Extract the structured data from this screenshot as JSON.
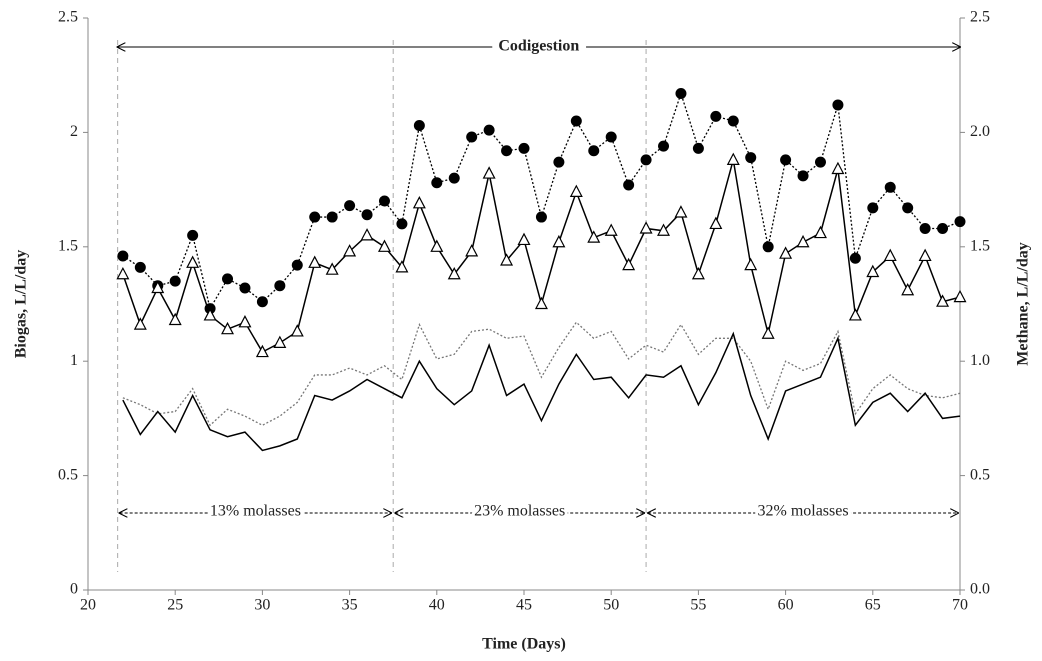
{
  "chart_data": {
    "type": "line",
    "x": [
      22,
      23,
      24,
      25,
      26,
      27,
      28,
      29,
      30,
      31,
      32,
      33,
      34,
      35,
      36,
      37,
      38,
      39,
      40,
      41,
      42,
      43,
      44,
      45,
      46,
      47,
      48,
      49,
      50,
      51,
      52,
      53,
      54,
      55,
      56,
      57,
      58,
      59,
      60,
      61,
      62,
      63,
      64,
      65,
      66,
      67,
      68,
      69,
      70
    ],
    "xlabel": "Time (Days)",
    "ylabel": "Biogas, L/L/day",
    "y2label": "Methane, L/L/day",
    "xlim": [
      20,
      70
    ],
    "xticks": [
      20,
      25,
      30,
      35,
      40,
      45,
      50,
      55,
      60,
      65,
      70
    ],
    "ylim": [
      0,
      2.5
    ],
    "yticks": [
      0,
      0.5,
      1,
      1.5,
      2,
      2.5
    ],
    "y2lim": [
      0,
      2.5
    ],
    "y2ticks": [
      {
        "value": 0,
        "label": "0.0"
      },
      {
        "value": 0.5,
        "label": "0.5"
      },
      {
        "value": 1,
        "label": "1.0"
      },
      {
        "value": 1.5,
        "label": "1.5"
      },
      {
        "value": 2,
        "label": "2.0"
      },
      {
        "value": 2.5,
        "label": "2.5"
      }
    ],
    "grid": false,
    "series": [
      {
        "color": "#000000",
        "line_style": "dotted",
        "marker": "circle",
        "axis": "y",
        "values": [
          1.46,
          1.41,
          1.33,
          1.35,
          1.55,
          1.23,
          1.36,
          1.32,
          1.26,
          1.33,
          1.42,
          1.63,
          1.63,
          1.68,
          1.64,
          1.7,
          1.6,
          2.03,
          1.78,
          1.8,
          1.98,
          2.01,
          1.92,
          1.93,
          1.63,
          1.87,
          2.05,
          1.92,
          1.98,
          1.77,
          1.88,
          1.94,
          2.17,
          1.93,
          2.07,
          2.05,
          1.89,
          1.5,
          1.88,
          1.81,
          1.87,
          2.12,
          1.45,
          1.67,
          1.76,
          1.67,
          1.58,
          1.58,
          1.61
        ]
      },
      {
        "color": "#000000",
        "line_style": "solid",
        "marker": "triangle",
        "axis": "y",
        "values": [
          1.38,
          1.16,
          1.32,
          1.18,
          1.43,
          1.2,
          1.14,
          1.17,
          1.04,
          1.08,
          1.13,
          1.43,
          1.4,
          1.48,
          1.55,
          1.5,
          1.41,
          1.69,
          1.5,
          1.38,
          1.48,
          1.82,
          1.44,
          1.53,
          1.25,
          1.52,
          1.74,
          1.54,
          1.57,
          1.42,
          1.58,
          1.57,
          1.65,
          1.38,
          1.6,
          1.88,
          1.42,
          1.12,
          1.47,
          1.52,
          1.56,
          1.84,
          1.2,
          1.39,
          1.46,
          1.31,
          1.46,
          1.26,
          1.28
        ]
      },
      {
        "color": "#777777",
        "line_style": "dotted",
        "marker": "none",
        "axis": "y2",
        "values": [
          0.84,
          0.81,
          0.77,
          0.78,
          0.88,
          0.72,
          0.79,
          0.76,
          0.72,
          0.76,
          0.82,
          0.94,
          0.94,
          0.97,
          0.94,
          0.98,
          0.92,
          1.16,
          1.01,
          1.03,
          1.13,
          1.14,
          1.1,
          1.11,
          0.93,
          1.06,
          1.17,
          1.1,
          1.13,
          1.01,
          1.07,
          1.04,
          1.16,
          1.03,
          1.1,
          1.1,
          1.0,
          0.79,
          1.0,
          0.96,
          0.99,
          1.13,
          0.77,
          0.88,
          0.94,
          0.88,
          0.85,
          0.84,
          0.86
        ]
      },
      {
        "color": "#000000",
        "line_style": "solid",
        "marker": "none",
        "axis": "y2",
        "values": [
          0.83,
          0.68,
          0.78,
          0.69,
          0.85,
          0.7,
          0.67,
          0.69,
          0.61,
          0.63,
          0.66,
          0.85,
          0.83,
          0.87,
          0.92,
          0.88,
          0.84,
          1.0,
          0.88,
          0.81,
          0.87,
          1.07,
          0.85,
          0.9,
          0.74,
          0.9,
          1.03,
          0.92,
          0.93,
          0.84,
          0.94,
          0.93,
          0.98,
          0.81,
          0.95,
          1.12,
          0.85,
          0.66,
          0.87,
          0.9,
          0.93,
          1.1,
          0.72,
          0.82,
          0.86,
          0.78,
          0.86,
          0.75,
          0.76
        ]
      }
    ],
    "span": {
      "label": "Codigestion",
      "start": 21.7,
      "end": 70
    },
    "phases": [
      {
        "label": "13% molasses",
        "start": 21.7,
        "end": 37.5
      },
      {
        "label": "23% molasses",
        "start": 37.5,
        "end": 52
      },
      {
        "label": "32% molasses",
        "start": 52,
        "end": 70
      }
    ]
  }
}
